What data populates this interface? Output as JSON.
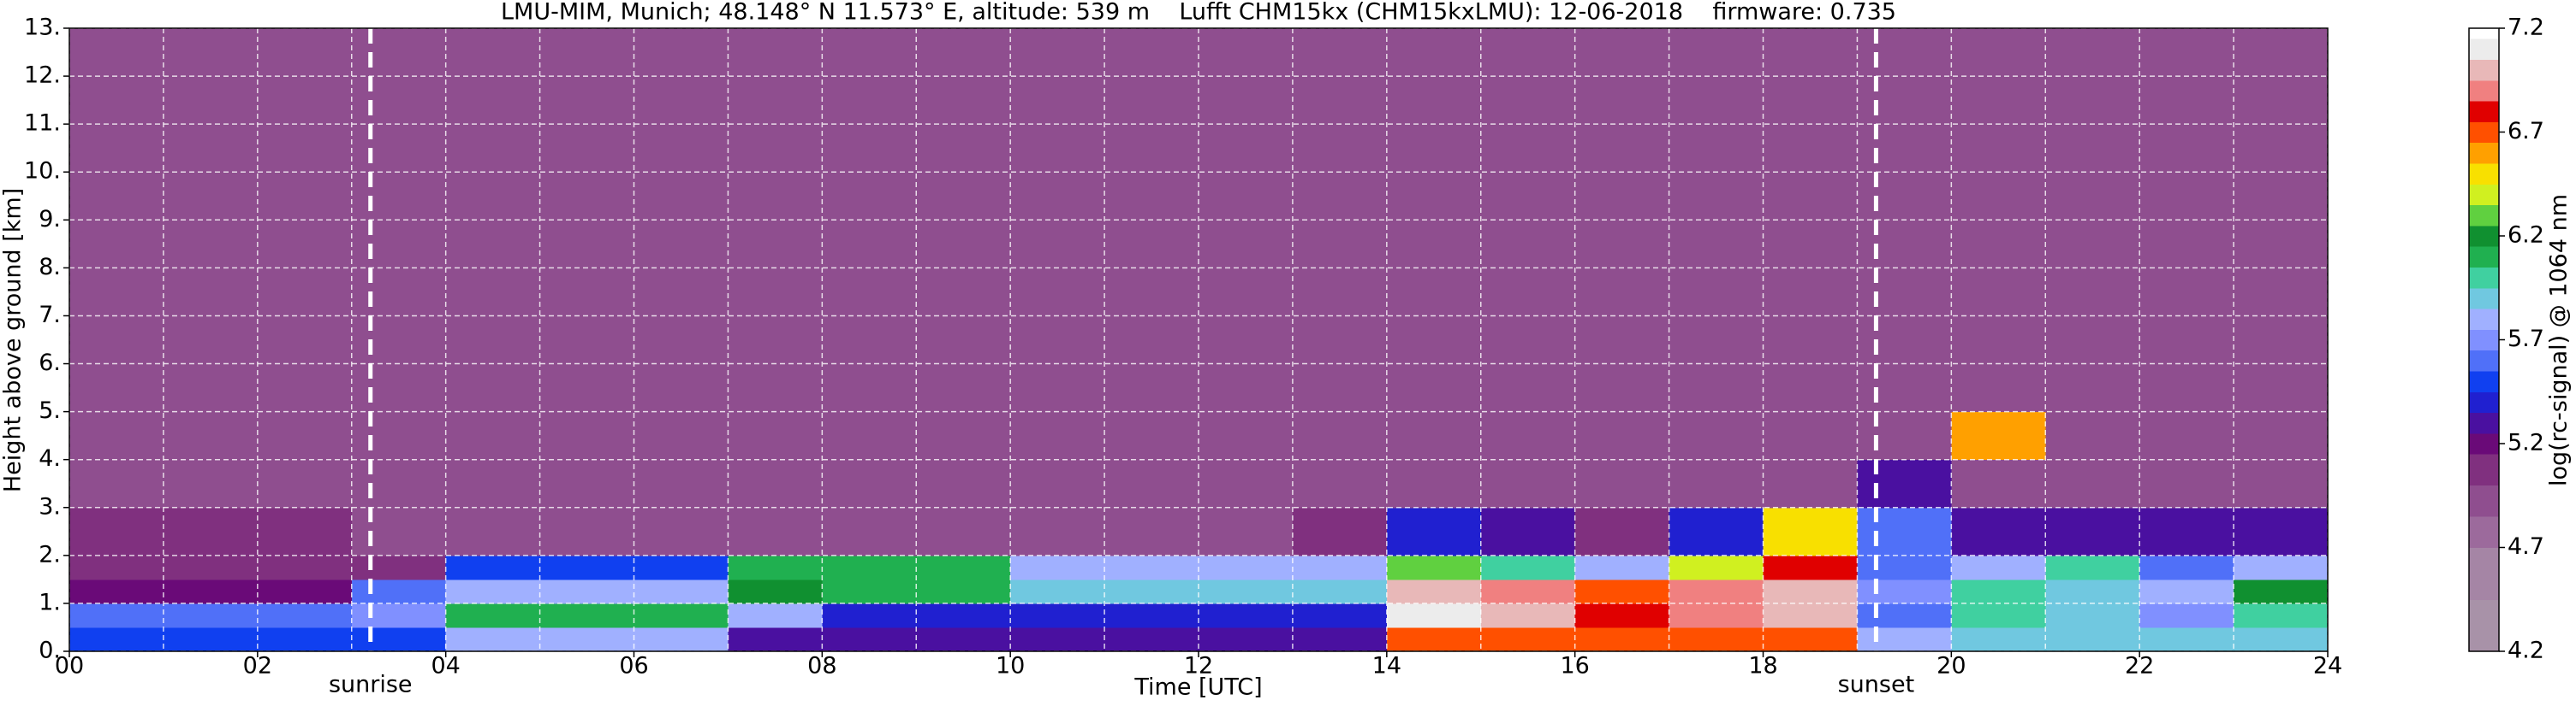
{
  "chart_data": {
    "type": "heatmap",
    "title": "LMU-MIM, Munich; 48.148° N 11.573° E, altitude: 539 m    Lufft CHM15kx (CHM15kxLMU): 12-06-2018    firmware: 0.735",
    "xlabel": "Time [UTC]",
    "ylabel": "Height above ground [km]",
    "colorbar_label": "log(rc-signal) @ 1064 nm",
    "xlim": [
      0,
      24
    ],
    "ylim": [
      0,
      13
    ],
    "zlim": [
      4.2,
      7.2
    ],
    "xticks": [
      {
        "value": 0,
        "label": "00"
      },
      {
        "value": 2,
        "label": "02"
      },
      {
        "value": 4,
        "label": "04"
      },
      {
        "value": 6,
        "label": "06"
      },
      {
        "value": 8,
        "label": "08"
      },
      {
        "value": 10,
        "label": "10"
      },
      {
        "value": 12,
        "label": "12"
      },
      {
        "value": 14,
        "label": "14"
      },
      {
        "value": 16,
        "label": "16"
      },
      {
        "value": 18,
        "label": "18"
      },
      {
        "value": 20,
        "label": "20"
      },
      {
        "value": 22,
        "label": "22"
      },
      {
        "value": 24,
        "label": "24"
      }
    ],
    "x_minor_ticks": [
      1,
      3,
      5,
      7,
      9,
      11,
      13,
      15,
      17,
      19,
      21,
      23
    ],
    "yticks": [
      {
        "value": 0,
        "label": "0."
      },
      {
        "value": 1,
        "label": "1."
      },
      {
        "value": 2,
        "label": "2."
      },
      {
        "value": 3,
        "label": "3."
      },
      {
        "value": 4,
        "label": "4."
      },
      {
        "value": 5,
        "label": "5."
      },
      {
        "value": 6,
        "label": "6."
      },
      {
        "value": 7,
        "label": "7."
      },
      {
        "value": 8,
        "label": "8."
      },
      {
        "value": 9,
        "label": "9."
      },
      {
        "value": 10,
        "label": "10."
      },
      {
        "value": 11,
        "label": "11."
      },
      {
        "value": 12,
        "label": "12."
      },
      {
        "value": 13,
        "label": "13."
      }
    ],
    "cbar_ticks": [
      4.2,
      4.7,
      5.2,
      5.7,
      6.2,
      6.7,
      7.2
    ],
    "grid": true,
    "vlines": [
      {
        "x": 3.2,
        "label": "sunrise"
      },
      {
        "x": 19.2,
        "label": "sunset"
      }
    ],
    "colormap": [
      {
        "value": 4.2,
        "color": "#a892a8"
      },
      {
        "value": 4.45,
        "color": "#a585a5"
      },
      {
        "value": 4.7,
        "color": "#9c6a9c"
      },
      {
        "value": 4.85,
        "color": "#8f4e8f"
      },
      {
        "value": 5.0,
        "color": "#80307f"
      },
      {
        "value": 5.15,
        "color": "#6a0a78"
      },
      {
        "value": 5.25,
        "color": "#4a10a0"
      },
      {
        "value": 5.35,
        "color": "#2020d0"
      },
      {
        "value": 5.45,
        "color": "#1040f0"
      },
      {
        "value": 5.55,
        "color": "#5070f8"
      },
      {
        "value": 5.65,
        "color": "#8090ff"
      },
      {
        "value": 5.75,
        "color": "#a0b0ff"
      },
      {
        "value": 5.85,
        "color": "#70c8e0"
      },
      {
        "value": 5.95,
        "color": "#40d0a0"
      },
      {
        "value": 6.05,
        "color": "#20b050"
      },
      {
        "value": 6.15,
        "color": "#109030"
      },
      {
        "value": 6.25,
        "color": "#60d040"
      },
      {
        "value": 6.35,
        "color": "#d0f020"
      },
      {
        "value": 6.45,
        "color": "#f8e000"
      },
      {
        "value": 6.55,
        "color": "#ffa000"
      },
      {
        "value": 6.65,
        "color": "#ff5000"
      },
      {
        "value": 6.75,
        "color": "#e00000"
      },
      {
        "value": 6.85,
        "color": "#f08080"
      },
      {
        "value": 6.95,
        "color": "#e8b8b8"
      },
      {
        "value": 7.05,
        "color": "#ececec"
      },
      {
        "value": 7.15,
        "color": "#ffffff"
      }
    ],
    "x_edges": [
      0,
      1,
      2,
      3,
      4,
      5,
      6,
      7,
      8,
      9,
      10,
      11,
      12,
      13,
      14,
      15,
      16,
      17,
      18,
      19,
      20,
      21,
      22,
      23,
      24
    ],
    "y_edges": [
      0,
      0.5,
      1,
      1.5,
      2,
      3,
      4,
      5,
      6,
      8,
      10,
      13
    ],
    "z": [
      [
        5.5,
        5.5,
        5.5,
        5.5,
        5.8,
        5.8,
        5.8,
        5.3,
        5.3,
        5.3,
        5.3,
        5.3,
        5.3,
        5.3,
        6.7,
        6.7,
        6.7,
        6.7,
        6.7,
        5.8,
        5.9,
        5.9,
        5.9,
        5.9
      ],
      [
        5.6,
        5.6,
        5.6,
        5.7,
        6.1,
        6.1,
        6.1,
        5.8,
        5.4,
        5.4,
        5.4,
        5.4,
        5.4,
        5.4,
        7.1,
        7.0,
        6.8,
        6.9,
        7.0,
        5.6,
        6.0,
        5.9,
        5.7,
        6.0
      ],
      [
        5.2,
        5.2,
        5.2,
        5.6,
        5.8,
        5.8,
        5.8,
        6.2,
        6.1,
        6.1,
        5.9,
        5.9,
        5.9,
        5.9,
        7.0,
        6.9,
        6.7,
        6.9,
        7.0,
        5.7,
        6.0,
        5.9,
        5.8,
        6.2
      ],
      [
        5.1,
        5.1,
        5.1,
        5.1,
        5.5,
        5.5,
        5.5,
        6.1,
        6.1,
        6.1,
        5.8,
        5.8,
        5.8,
        5.8,
        6.3,
        6.0,
        5.8,
        6.4,
        6.8,
        5.6,
        5.8,
        6.0,
        5.6,
        5.8
      ],
      [
        5.0,
        5.0,
        5.0,
        4.9,
        4.9,
        4.9,
        4.9,
        4.9,
        4.9,
        4.9,
        4.9,
        4.9,
        4.9,
        5.0,
        5.4,
        5.3,
        5.1,
        5.4,
        6.5,
        5.6,
        5.3,
        5.3,
        5.3,
        5.3
      ],
      [
        4.9,
        4.9,
        4.9,
        4.9,
        4.9,
        4.9,
        4.9,
        4.9,
        4.9,
        4.9,
        4.9,
        4.9,
        4.9,
        4.9,
        4.9,
        4.9,
        4.9,
        4.9,
        4.9,
        5.3,
        4.9,
        4.9,
        4.9,
        4.9
      ],
      [
        4.9,
        4.9,
        4.9,
        4.9,
        4.9,
        4.9,
        4.9,
        4.9,
        4.9,
        4.9,
        4.9,
        4.9,
        4.9,
        4.9,
        4.9,
        4.9,
        4.9,
        4.9,
        4.9,
        4.9,
        6.6,
        4.9,
        4.9,
        4.9
      ],
      [
        4.9,
        4.9,
        4.9,
        4.9,
        4.9,
        4.9,
        4.9,
        4.9,
        4.9,
        4.9,
        4.9,
        4.9,
        4.9,
        4.9,
        4.9,
        4.9,
        4.9,
        4.9,
        4.9,
        4.9,
        4.9,
        4.9,
        4.9,
        4.9
      ],
      [
        4.9,
        4.9,
        4.9,
        4.9,
        4.9,
        4.9,
        4.9,
        4.9,
        4.9,
        4.9,
        4.9,
        4.9,
        4.9,
        4.9,
        4.9,
        4.9,
        4.9,
        4.9,
        4.9,
        4.9,
        4.9,
        4.9,
        4.9,
        4.9
      ],
      [
        4.9,
        4.9,
        4.9,
        4.9,
        4.9,
        4.9,
        4.9,
        4.9,
        4.9,
        4.9,
        4.9,
        4.9,
        4.9,
        4.9,
        4.9,
        4.9,
        4.9,
        4.9,
        4.9,
        4.9,
        4.9,
        4.9,
        4.9,
        4.9
      ],
      [
        4.9,
        4.9,
        4.9,
        4.9,
        4.9,
        4.9,
        4.9,
        4.9,
        4.9,
        4.9,
        4.9,
        4.9,
        4.9,
        4.9,
        4.9,
        4.9,
        4.9,
        4.9,
        4.9,
        4.9,
        4.9,
        4.9,
        4.9,
        4.9
      ]
    ]
  }
}
